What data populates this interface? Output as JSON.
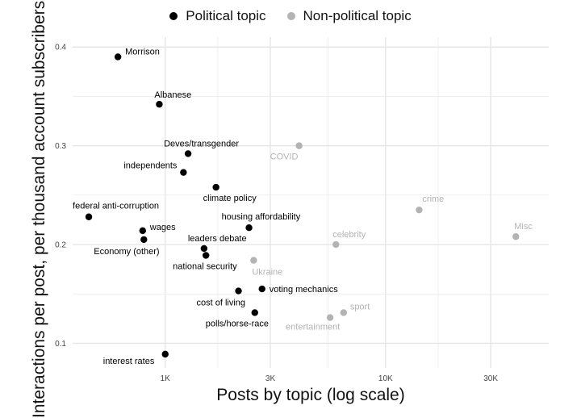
{
  "legend": {
    "political": "Political topic",
    "nonpolitical": "Non-political topic"
  },
  "colors": {
    "political": "#000000",
    "nonpolitical": "#b3b3b3",
    "grid": "#e6e6e6",
    "tick": "#444444"
  },
  "chart_data": {
    "type": "scatter",
    "xlabel": "Posts by topic (log scale)",
    "ylabel": "Interactions per post, per thousand account subscribers",
    "x_scale": "log",
    "xlim": [
      380,
      55000
    ],
    "ylim": [
      0.075,
      0.41
    ],
    "x_ticks": [
      1000,
      3000,
      10000,
      30000
    ],
    "x_tick_labels": [
      "1K",
      "3K",
      "10K",
      "30K"
    ],
    "y_ticks": [
      0.1,
      0.2,
      0.3,
      0.4
    ],
    "y_tick_labels": [
      "0.1",
      "0.2",
      "0.3",
      "0.4"
    ],
    "grid": true,
    "legend_position": "top",
    "series": [
      {
        "name": "Political topic",
        "points": [
          {
            "label": "Morrison",
            "x": 610,
            "y": 0.39
          },
          {
            "label": "Albanese",
            "x": 940,
            "y": 0.342
          },
          {
            "label": "Deves/transgender",
            "x": 1270,
            "y": 0.292
          },
          {
            "label": "independents",
            "x": 1210,
            "y": 0.273
          },
          {
            "label": "climate policy",
            "x": 1700,
            "y": 0.258
          },
          {
            "label": "federal anti-corruption",
            "x": 450,
            "y": 0.228
          },
          {
            "label": "housing affordability",
            "x": 2400,
            "y": 0.217
          },
          {
            "label": "wages",
            "x": 790,
            "y": 0.214
          },
          {
            "label": "Economy (other)",
            "x": 800,
            "y": 0.205
          },
          {
            "label": "leaders debate",
            "x": 1500,
            "y": 0.196
          },
          {
            "label": "national security",
            "x": 1530,
            "y": 0.189
          },
          {
            "label": "voting mechanics",
            "x": 2750,
            "y": 0.155
          },
          {
            "label": "cost of living",
            "x": 2150,
            "y": 0.153
          },
          {
            "label": "polls/horse-race",
            "x": 2550,
            "y": 0.131
          },
          {
            "label": "interest rates",
            "x": 1000,
            "y": 0.089
          }
        ]
      },
      {
        "name": "Non-political topic",
        "points": [
          {
            "label": "COVID",
            "x": 4050,
            "y": 0.3
          },
          {
            "label": "crime",
            "x": 14200,
            "y": 0.235
          },
          {
            "label": "Misc",
            "x": 39000,
            "y": 0.208
          },
          {
            "label": "celebrity",
            "x": 5950,
            "y": 0.2
          },
          {
            "label": "Ukraine",
            "x": 2520,
            "y": 0.184
          },
          {
            "label": "sport",
            "x": 6450,
            "y": 0.131
          },
          {
            "label": "entertainment",
            "x": 5600,
            "y": 0.126
          }
        ]
      }
    ]
  }
}
